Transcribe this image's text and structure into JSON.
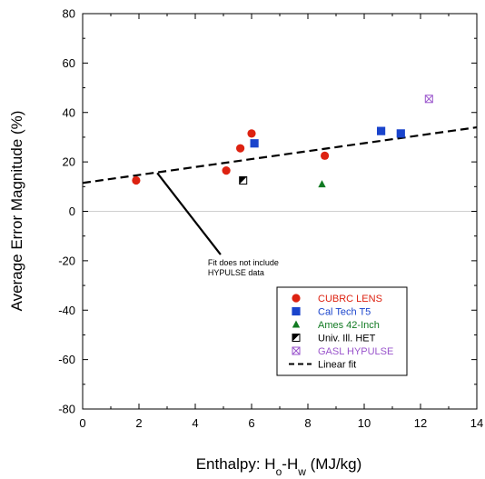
{
  "chart_data": {
    "type": "scatter",
    "title": "",
    "xlabel_parts": [
      "Enthalpy: H",
      "o",
      "-H",
      "w",
      " (MJ/kg)"
    ],
    "ylabel": "Average Error Magnitude (%)",
    "xlim": [
      0,
      14
    ],
    "ylim": [
      -80,
      80
    ],
    "x_ticks": [
      0,
      2,
      4,
      6,
      8,
      10,
      12,
      14
    ],
    "y_ticks": [
      -80,
      -60,
      -40,
      -20,
      0,
      20,
      40,
      60,
      80
    ],
    "grid": false,
    "zero_line": true,
    "legend_position": "lower-right",
    "series": [
      {
        "name": "CUBRC LENS",
        "marker": "circle",
        "color": "#dd2211",
        "points": [
          [
            1.9,
            12.5
          ],
          [
            5.1,
            16.5
          ],
          [
            5.6,
            25.5
          ],
          [
            6.0,
            31.5
          ],
          [
            8.6,
            22.5
          ]
        ]
      },
      {
        "name": "Cal Tech T5",
        "marker": "square",
        "color": "#1a44cc",
        "points": [
          [
            6.1,
            27.5
          ],
          [
            10.6,
            32.5
          ],
          [
            11.3,
            31.5
          ]
        ]
      },
      {
        "name": "Ames 42-Inch",
        "marker": "triangle",
        "color": "#117a22",
        "points": [
          [
            8.5,
            11.0
          ]
        ]
      },
      {
        "name": "Univ. Ill. HET",
        "marker": "half-square",
        "color": "#000000",
        "points": [
          [
            5.7,
            12.5
          ]
        ]
      },
      {
        "name": "GASL HYPULSE",
        "marker": "crossed-square",
        "color": "#9a55cc",
        "points": [
          [
            12.3,
            45.5
          ]
        ]
      }
    ],
    "fit": {
      "name": "Linear fit",
      "style": "dashed",
      "color": "#000000",
      "x": [
        0,
        14
      ],
      "y": [
        11.5,
        34
      ]
    },
    "annotation": {
      "lines": [
        "Fit does not include",
        "HYPULSE data"
      ],
      "arrow_to": [
        2.65,
        15.5
      ],
      "anchor": [
        4.9,
        -17.5
      ]
    }
  }
}
